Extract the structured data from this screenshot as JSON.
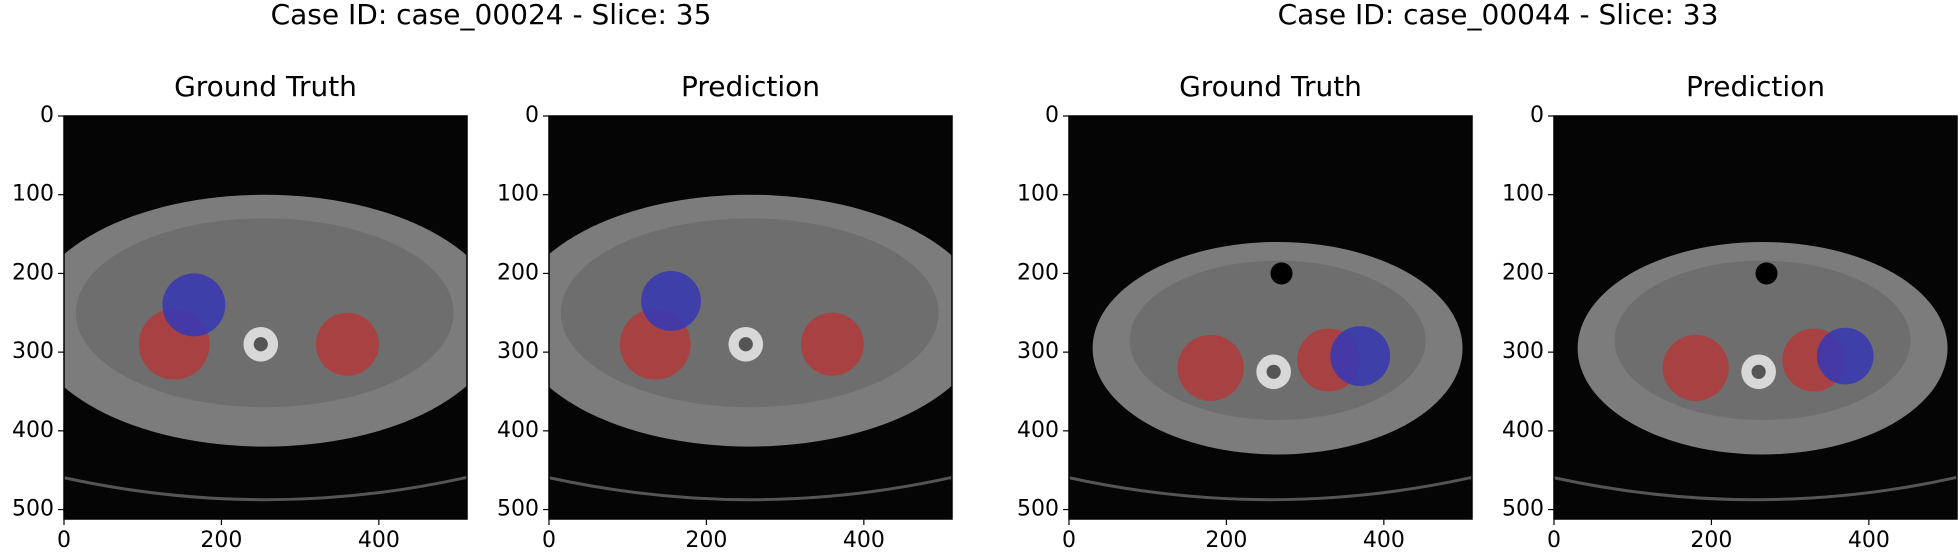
{
  "suptitles": [
    "Case ID: case_00024 - Slice: 35",
    "Case ID: case_00044 - Slice: 33"
  ],
  "chart_data": [
    {
      "type": "image",
      "title": "Ground Truth",
      "xlim": [
        0,
        512
      ],
      "ylim": [
        512,
        0
      ],
      "xticks": [
        0,
        200,
        400
      ],
      "yticks": [
        0,
        100,
        200,
        300,
        400,
        500
      ]
    },
    {
      "type": "image",
      "title": "Prediction",
      "xlim": [
        0,
        512
      ],
      "ylim": [
        512,
        0
      ],
      "xticks": [
        0,
        200,
        400
      ],
      "yticks": [
        0,
        100,
        200,
        300,
        400,
        500
      ]
    },
    {
      "type": "image",
      "title": "Ground Truth",
      "xlim": [
        0,
        512
      ],
      "ylim": [
        512,
        0
      ],
      "xticks": [
        0,
        200,
        400
      ],
      "yticks": [
        0,
        100,
        200,
        300,
        400,
        500
      ]
    },
    {
      "type": "image",
      "title": "Prediction",
      "xlim": [
        0,
        512
      ],
      "ylim": [
        512,
        0
      ],
      "xticks": [
        0,
        200,
        400
      ],
      "yticks": [
        0,
        100,
        200,
        300,
        400,
        500
      ]
    }
  ]
}
